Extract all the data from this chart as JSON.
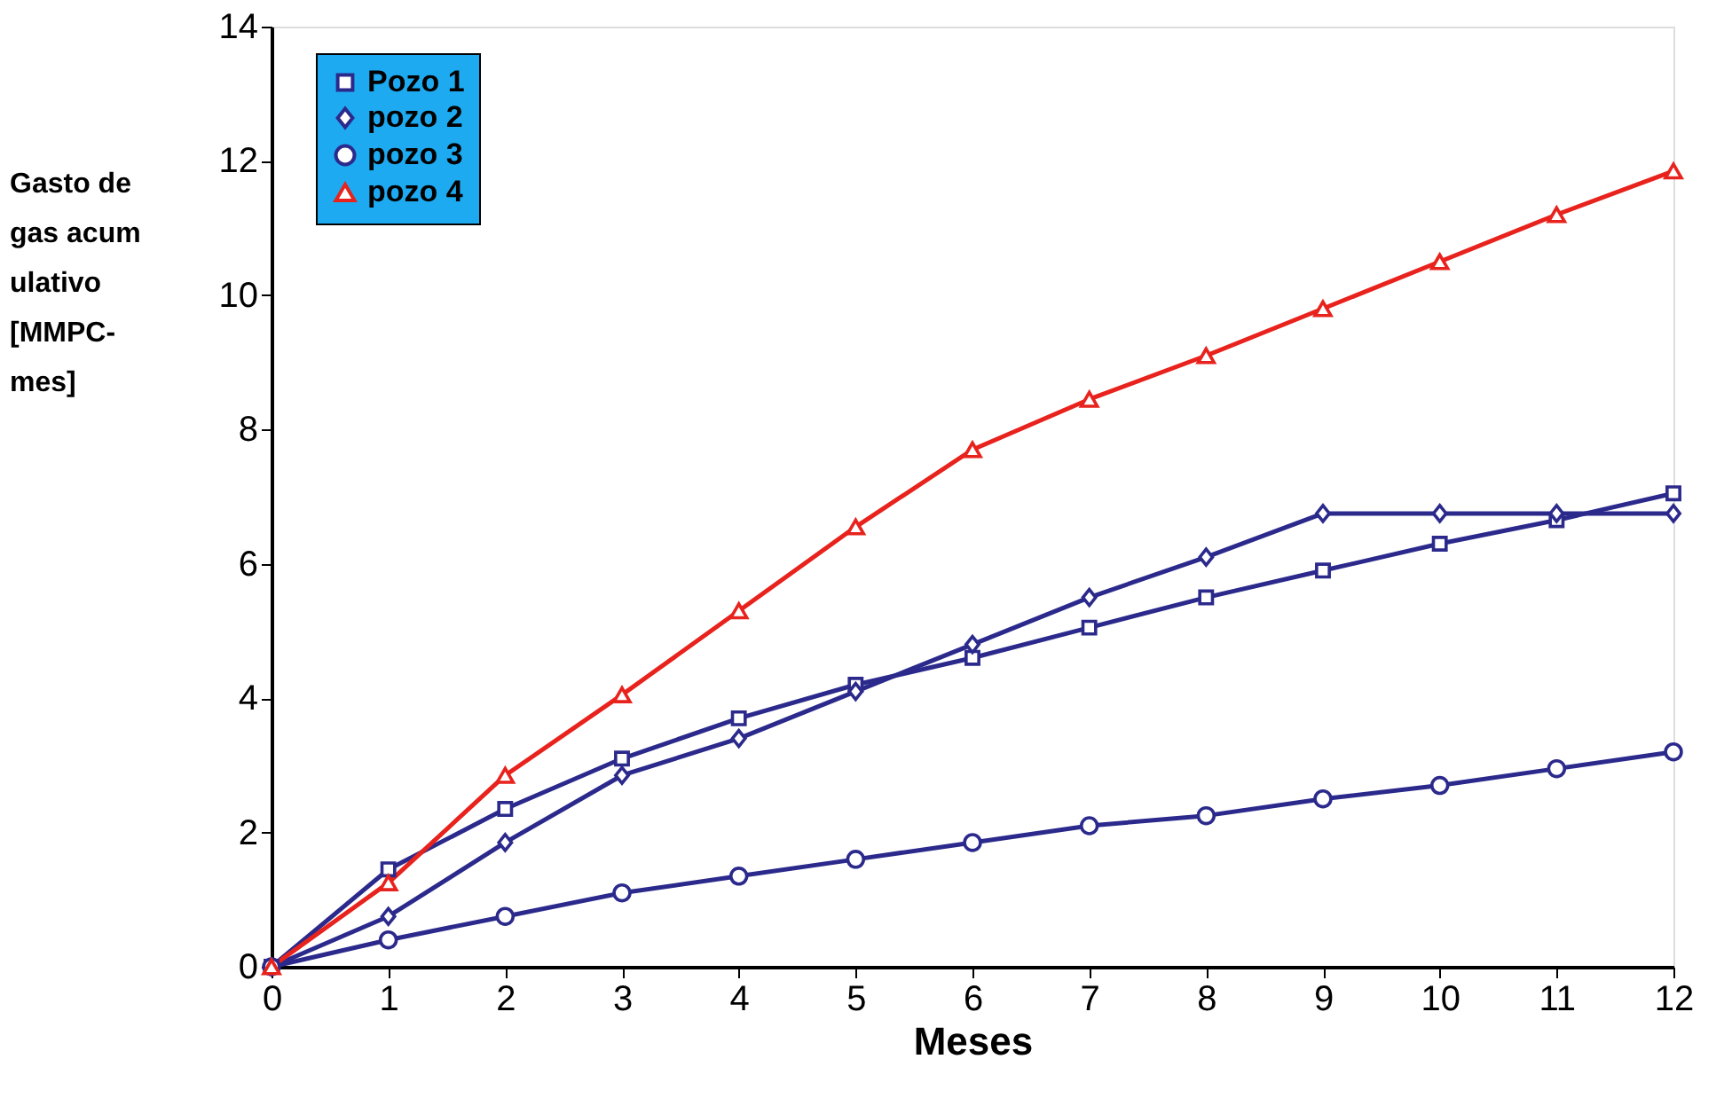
{
  "chart_data": {
    "type": "line",
    "xlabel": "Meses",
    "ylabel": "Gasto de gas acumulativo [MMPC-mes]",
    "x": [
      0,
      1,
      2,
      3,
      4,
      5,
      6,
      7,
      8,
      9,
      10,
      11,
      12
    ],
    "series": [
      {
        "name": "Pozo 1",
        "color": "#2b2a8c",
        "marker": "square",
        "values": [
          0,
          1.45,
          2.35,
          3.1,
          3.7,
          4.2,
          4.6,
          5.05,
          5.5,
          5.9,
          6.3,
          6.65,
          7.05
        ]
      },
      {
        "name": "pozo 2",
        "color": "#2b2a8c",
        "marker": "diamond",
        "values": [
          0,
          0.75,
          1.85,
          2.85,
          3.4,
          4.1,
          4.8,
          5.5,
          6.1,
          6.75,
          6.75,
          6.75,
          6.75
        ]
      },
      {
        "name": "pozo 3",
        "color": "#2b2a8c",
        "marker": "circle",
        "values": [
          0,
          0.4,
          0.75,
          1.1,
          1.35,
          1.6,
          1.85,
          2.1,
          2.25,
          2.5,
          2.7,
          2.95,
          3.2
        ]
      },
      {
        "name": "pozo 4",
        "color": "#e8221c",
        "marker": "triangle",
        "values": [
          0,
          1.25,
          2.85,
          4.05,
          5.3,
          6.55,
          7.7,
          8.45,
          9.1,
          9.8,
          10.5,
          11.2,
          11.85
        ]
      }
    ],
    "xlim": [
      0,
      12
    ],
    "xticks": [
      0,
      1,
      2,
      3,
      4,
      5,
      6,
      7,
      8,
      9,
      10,
      11,
      12
    ],
    "ylim": [
      0,
      14
    ],
    "yticks": [
      0,
      2,
      4,
      6,
      8,
      10,
      12,
      14
    ],
    "grid": false,
    "legend": "top left",
    "line_style": "solid"
  }
}
